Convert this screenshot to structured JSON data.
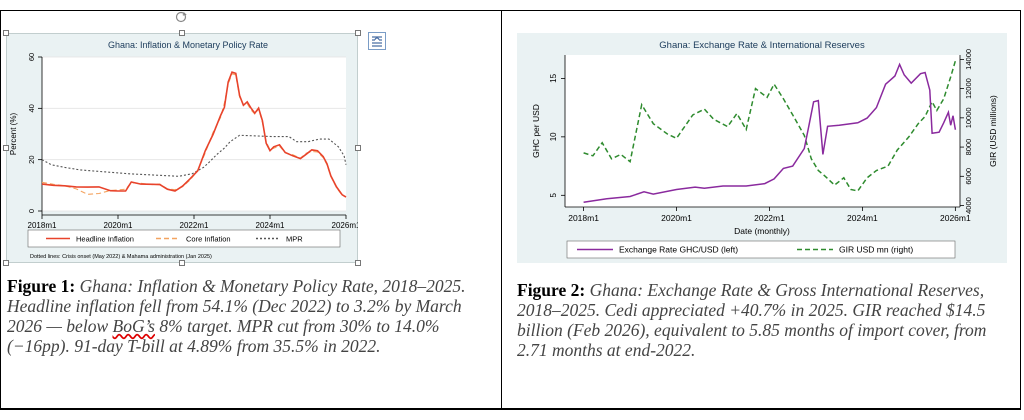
{
  "figure1": {
    "chart_data": {
      "type": "line",
      "title": "Ghana: Inflation & Monetary Policy Rate",
      "ylabel": "Percent (%)",
      "xlabel": "",
      "ylim": [
        0,
        60
      ],
      "yticks": [
        0,
        20,
        40,
        60
      ],
      "xlim": [
        2018.0,
        2026.0
      ],
      "xticks": [
        {
          "v": 2018.0,
          "label": "2018m1"
        },
        {
          "v": 2020.0,
          "label": "2020m1"
        },
        {
          "v": 2022.0,
          "label": "2022m1"
        },
        {
          "v": 2024.0,
          "label": "2024m1"
        },
        {
          "v": 2026.0,
          "label": "2026m1"
        }
      ],
      "grid": "horizontal",
      "legend": "bottom",
      "series": [
        {
          "name": "Headline Inflation",
          "color": "#e8432b",
          "style": "solid",
          "points": [
            [
              2018.0,
              10.5
            ],
            [
              2018.3,
              10.0
            ],
            [
              2018.6,
              9.8
            ],
            [
              2018.9,
              9.4
            ],
            [
              2019.2,
              9.3
            ],
            [
              2019.5,
              9.4
            ],
            [
              2019.8,
              7.9
            ],
            [
              2020.0,
              7.8
            ],
            [
              2020.2,
              7.8
            ],
            [
              2020.35,
              11.3
            ],
            [
              2020.6,
              10.5
            ],
            [
              2020.9,
              10.4
            ],
            [
              2021.1,
              10.3
            ],
            [
              2021.3,
              8.5
            ],
            [
              2021.5,
              7.8
            ],
            [
              2021.7,
              9.7
            ],
            [
              2021.9,
              12.6
            ],
            [
              2022.1,
              15.7
            ],
            [
              2022.3,
              23.6
            ],
            [
              2022.5,
              29.8
            ],
            [
              2022.7,
              37.2
            ],
            [
              2022.8,
              40.4
            ],
            [
              2022.9,
              50.3
            ],
            [
              2023.0,
              54.1
            ],
            [
              2023.1,
              53.6
            ],
            [
              2023.2,
              45.0
            ],
            [
              2023.3,
              41.2
            ],
            [
              2023.4,
              42.5
            ],
            [
              2023.5,
              40.1
            ],
            [
              2023.6,
              38.1
            ],
            [
              2023.7,
              40.1
            ],
            [
              2023.8,
              35.2
            ],
            [
              2023.9,
              26.4
            ],
            [
              2024.0,
              23.5
            ],
            [
              2024.1,
              25.0
            ],
            [
              2024.25,
              25.8
            ],
            [
              2024.4,
              22.8
            ],
            [
              2024.6,
              21.5
            ],
            [
              2024.8,
              20.4
            ],
            [
              2024.95,
              22.1
            ],
            [
              2025.1,
              23.8
            ],
            [
              2025.25,
              23.5
            ],
            [
              2025.4,
              21.2
            ],
            [
              2025.5,
              18.4
            ],
            [
              2025.6,
              13.7
            ],
            [
              2025.75,
              9.4
            ],
            [
              2025.9,
              6.3
            ],
            [
              2026.0,
              5.4
            ]
          ]
        },
        {
          "name": "Core Inflation",
          "color": "#f4a460",
          "style": "dashed",
          "points": [
            [
              2018.0,
              11.2
            ],
            [
              2018.3,
              10.4
            ],
            [
              2018.6,
              9.8
            ],
            [
              2018.9,
              8.6
            ],
            [
              2019.2,
              6.5
            ],
            [
              2019.5,
              6.8
            ],
            [
              2019.8,
              8.0
            ],
            [
              2020.0,
              8.2
            ],
            [
              2020.2,
              8.5
            ],
            [
              2020.35,
              11.0
            ],
            [
              2020.6,
              10.8
            ],
            [
              2020.9,
              10.3
            ],
            [
              2021.1,
              10.5
            ],
            [
              2021.3,
              8.6
            ],
            [
              2021.5,
              8.3
            ],
            [
              2021.7,
              9.5
            ],
            [
              2021.9,
              12.1
            ],
            [
              2022.1,
              15.9
            ],
            [
              2022.3,
              22.8
            ],
            [
              2022.5,
              30.6
            ],
            [
              2022.7,
              36.5
            ],
            [
              2022.8,
              42.0
            ],
            [
              2022.9,
              49.5
            ],
            [
              2023.0,
              53.5
            ],
            [
              2023.1,
              53.0
            ],
            [
              2023.2,
              44.4
            ],
            [
              2023.3,
              41.5
            ],
            [
              2023.4,
              41.9
            ],
            [
              2023.5,
              39.4
            ],
            [
              2023.6,
              37.8
            ],
            [
              2023.7,
              39.8
            ],
            [
              2023.8,
              34.6
            ],
            [
              2023.9,
              26.9
            ],
            [
              2024.0,
              23.9
            ],
            [
              2024.1,
              24.5
            ],
            [
              2024.25,
              25.3
            ],
            [
              2024.4,
              22.7
            ],
            [
              2024.6,
              21.9
            ],
            [
              2024.8,
              20.6
            ],
            [
              2024.95,
              22.5
            ],
            [
              2025.1,
              23.2
            ],
            [
              2025.25,
              23.0
            ],
            [
              2025.4,
              20.8
            ],
            [
              2025.5,
              18.0
            ],
            [
              2025.6,
              13.5
            ],
            [
              2025.75,
              9.1
            ],
            [
              2025.9,
              6.1
            ],
            [
              2026.0,
              5.6
            ]
          ]
        },
        {
          "name": "MPR",
          "color": "#555555",
          "style": "dotted",
          "points": [
            [
              2018.0,
              20.0
            ],
            [
              2018.25,
              18.0
            ],
            [
              2018.6,
              17.0
            ],
            [
              2019.0,
              16.0
            ],
            [
              2020.3,
              14.5
            ],
            [
              2021.6,
              13.5
            ],
            [
              2021.95,
              14.5
            ],
            [
              2022.25,
              17.0
            ],
            [
              2022.4,
              19.0
            ],
            [
              2022.6,
              22.0
            ],
            [
              2022.8,
              24.5
            ],
            [
              2022.95,
              27.0
            ],
            [
              2023.2,
              29.5
            ],
            [
              2024.1,
              29.0
            ],
            [
              2024.5,
              29.0
            ],
            [
              2024.7,
              27.0
            ],
            [
              2025.0,
              27.0
            ],
            [
              2025.3,
              28.0
            ],
            [
              2025.55,
              28.0
            ],
            [
              2025.8,
              25.0
            ],
            [
              2025.95,
              21.5
            ],
            [
              2026.0,
              18.0
            ]
          ]
        }
      ]
    },
    "note": "Dotted lines: Crisis onset (May 2022) & Mahama administration (Jan 2025)",
    "caption": {
      "label": "Figure 1:",
      "text_1": " Ghana: Inflation & Monetary Policy Rate, 2018–2025. Headline inflation fell from 54.1% (Dec 2022) to 3.2% by March 2026 — below ",
      "underlined": "BoG’s",
      "text_2": " 8% target. MPR cut from 30% to 14.0% (−16pp). 91-day T-bill at 4.89% from 35.5% in 2022."
    }
  },
  "figure2": {
    "chart_data": {
      "type": "line",
      "title": "Ghana: Exchange Rate & International Reserves",
      "xlabel": "Date (monthly)",
      "ylabel_left": "GHC per USD",
      "ylabel_right": "GIR (USD millions)",
      "xlim": [
        2017.6,
        2026.1
      ],
      "ylim_left": [
        4.0,
        17.0
      ],
      "ylim_right": [
        3900,
        14300
      ],
      "yticks_left": [
        5,
        10,
        15
      ],
      "yticks_right": [
        4000,
        6000,
        8000,
        10000,
        12000,
        14000
      ],
      "xticks": [
        {
          "v": 2018.0,
          "label": "2018m1"
        },
        {
          "v": 2020.0,
          "label": "2020m1"
        },
        {
          "v": 2022.0,
          "label": "2022m1"
        },
        {
          "v": 2024.0,
          "label": "2024m1"
        },
        {
          "v": 2026.0,
          "label": "2026m1"
        }
      ],
      "legend": "bottom",
      "series": [
        {
          "name": "Exchange Rate GHC/USD (left)",
          "axis": "left",
          "color": "#8a2a9e",
          "style": "solid",
          "points": [
            [
              2018.0,
              4.4
            ],
            [
              2018.5,
              4.7
            ],
            [
              2019.0,
              4.9
            ],
            [
              2019.3,
              5.3
            ],
            [
              2019.5,
              5.1
            ],
            [
              2020.0,
              5.5
            ],
            [
              2020.4,
              5.7
            ],
            [
              2020.6,
              5.6
            ],
            [
              2021.0,
              5.8
            ],
            [
              2021.5,
              5.8
            ],
            [
              2021.9,
              6.0
            ],
            [
              2022.1,
              6.4
            ],
            [
              2022.3,
              7.3
            ],
            [
              2022.5,
              7.5
            ],
            [
              2022.75,
              9.0
            ],
            [
              2022.85,
              11.0
            ],
            [
              2022.95,
              13.0
            ],
            [
              2023.05,
              13.1
            ],
            [
              2023.15,
              8.5
            ],
            [
              2023.25,
              10.9
            ],
            [
              2023.5,
              11.0
            ],
            [
              2023.9,
              11.2
            ],
            [
              2024.1,
              11.6
            ],
            [
              2024.3,
              12.5
            ],
            [
              2024.5,
              14.5
            ],
            [
              2024.7,
              15.2
            ],
            [
              2024.8,
              16.2
            ],
            [
              2024.9,
              15.3
            ],
            [
              2025.05,
              14.6
            ],
            [
              2025.25,
              15.4
            ],
            [
              2025.35,
              15.5
            ],
            [
              2025.45,
              14.0
            ],
            [
              2025.5,
              10.3
            ],
            [
              2025.65,
              10.4
            ],
            [
              2025.75,
              11.2
            ],
            [
              2025.85,
              12.1
            ],
            [
              2025.9,
              11.0
            ],
            [
              2025.95,
              11.8
            ],
            [
              2026.0,
              10.6
            ]
          ]
        },
        {
          "name": "GIR USD mn (right)",
          "axis": "right",
          "color": "#2e8b2e",
          "style": "dashed",
          "points": [
            [
              2018.0,
              7600
            ],
            [
              2018.2,
              7400
            ],
            [
              2018.4,
              8300
            ],
            [
              2018.6,
              7200
            ],
            [
              2018.8,
              7500
            ],
            [
              2019.0,
              7000
            ],
            [
              2019.25,
              10900
            ],
            [
              2019.5,
              9600
            ],
            [
              2019.8,
              8900
            ],
            [
              2020.0,
              8600
            ],
            [
              2020.35,
              10200
            ],
            [
              2020.6,
              10600
            ],
            [
              2020.8,
              9900
            ],
            [
              2021.1,
              9400
            ],
            [
              2021.3,
              10300
            ],
            [
              2021.5,
              9200
            ],
            [
              2021.7,
              12000
            ],
            [
              2021.95,
              11400
            ],
            [
              2022.1,
              12300
            ],
            [
              2022.3,
              11300
            ],
            [
              2022.5,
              10200
            ],
            [
              2022.75,
              8800
            ],
            [
              2022.9,
              7200
            ],
            [
              2023.05,
              6400
            ],
            [
              2023.2,
              6000
            ],
            [
              2023.4,
              5400
            ],
            [
              2023.6,
              5900
            ],
            [
              2023.75,
              5100
            ],
            [
              2023.9,
              5000
            ],
            [
              2024.1,
              5900
            ],
            [
              2024.3,
              6400
            ],
            [
              2024.55,
              6700
            ],
            [
              2024.75,
              7800
            ],
            [
              2025.0,
              8700
            ],
            [
              2025.2,
              9600
            ],
            [
              2025.35,
              10100
            ],
            [
              2025.5,
              11100
            ],
            [
              2025.6,
              10500
            ],
            [
              2025.75,
              11300
            ],
            [
              2025.9,
              12800
            ],
            [
              2026.0,
              13900
            ]
          ]
        }
      ]
    },
    "caption": {
      "label": "Figure 2:",
      "text": " Ghana: Exchange Rate & Gross International Reserves, 2018–2025. Cedi appreciated +40.7% in 2025. GIR reached $14.5 billion (Feb 2026), equivalent to 5.85 months of import cover, from 2.71 months at end-2022."
    }
  }
}
